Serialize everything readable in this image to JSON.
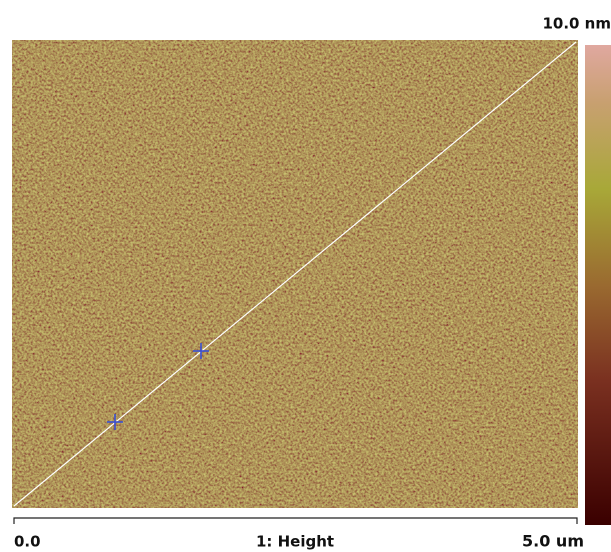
{
  "scale_bar": {
    "max_label": "10.0 nm"
  },
  "x_axis": {
    "start_label": "0.0",
    "end_label": "5.0 um"
  },
  "channel_label": "1: Height"
}
